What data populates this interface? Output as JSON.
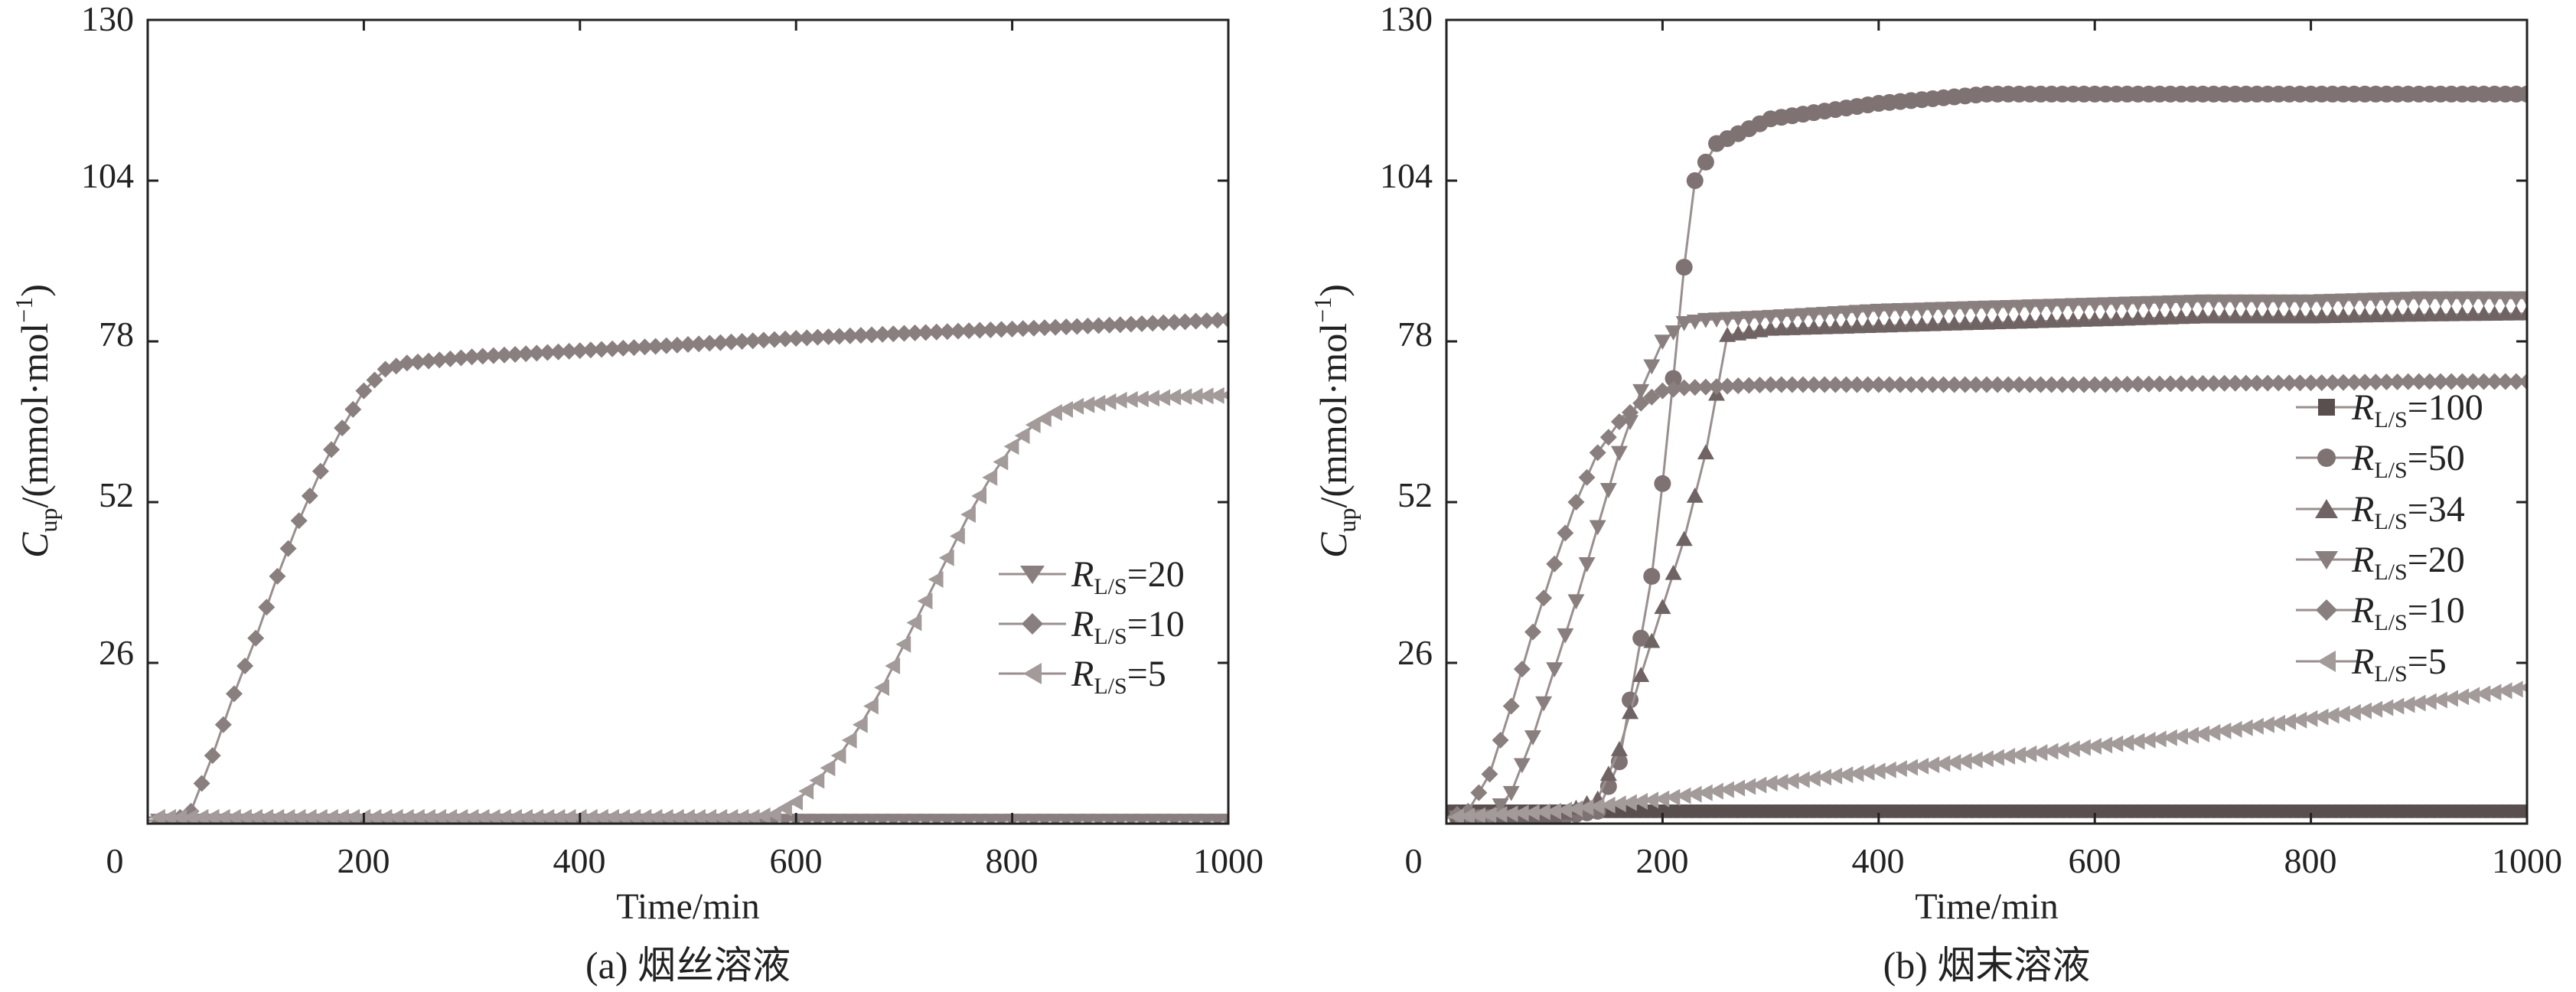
{
  "panels": [
    {
      "id": "a",
      "caption": "(a) 烟丝溶液",
      "xlabel": "Time/min",
      "ylabel": {
        "main": "C",
        "sub": "up",
        "rest": "/(mmol·mol",
        "sup": "−1",
        "close": ")"
      },
      "xticks": [
        "0",
        "200",
        "400",
        "600",
        "800",
        "1000"
      ],
      "yticks": [
        "130",
        "104",
        "78",
        "52",
        "26"
      ],
      "legend": [
        {
          "name": "R",
          "sub": "L/S",
          "value": "=20",
          "marker": "triangle-down"
        },
        {
          "name": "R",
          "sub": "L/S",
          "value": "=10",
          "marker": "diamond"
        },
        {
          "name": "R",
          "sub": "L/S",
          "value": "=5",
          "marker": "triangle-left"
        }
      ]
    },
    {
      "id": "b",
      "caption": "(b) 烟末溶液",
      "xlabel": "Time/min",
      "ylabel": {
        "main": "C",
        "sub": "up",
        "rest": "/(mmol·mol",
        "sup": "−1",
        "close": ")"
      },
      "xticks": [
        "0",
        "200",
        "400",
        "600",
        "800",
        "1000"
      ],
      "yticks": [
        "130",
        "104",
        "78",
        "52",
        "26"
      ],
      "legend": [
        {
          "name": "R",
          "sub": "L/S",
          "value": "=100",
          "marker": "square"
        },
        {
          "name": "R",
          "sub": "L/S",
          "value": "=50",
          "marker": "circle"
        },
        {
          "name": "R",
          "sub": "L/S",
          "value": "=34",
          "marker": "triangle-up"
        },
        {
          "name": "R",
          "sub": "L/S",
          "value": "=20",
          "marker": "triangle-down"
        },
        {
          "name": "R",
          "sub": "L/S",
          "value": "=10",
          "marker": "diamond"
        },
        {
          "name": "R",
          "sub": "L/S",
          "value": "=5",
          "marker": "triangle-left"
        }
      ]
    }
  ],
  "colors": {
    "axis": "#222222",
    "line": "#9a8f8f",
    "marker_dark": "#7f7272",
    "marker_light": "#a39a9a",
    "square": "#5a4f4f"
  },
  "chart_data": [
    {
      "type": "line",
      "title": "(a) 烟丝溶液",
      "xlabel": "Time/min",
      "ylabel": "Cup/(mmol·mol−1)",
      "xlim": [
        0,
        1000
      ],
      "ylim": [
        0,
        130
      ],
      "series": [
        {
          "name": "RL/S=20",
          "marker": "triangle-down",
          "x": [
            0,
            100,
            200,
            300,
            400,
            500,
            600,
            700,
            800,
            900,
            1000
          ],
          "y": [
            0.5,
            0.5,
            0.5,
            0.5,
            0.5,
            0.5,
            0.5,
            0.5,
            0.5,
            0.5,
            0.5
          ]
        },
        {
          "name": "RL/S=10",
          "marker": "diamond",
          "x": [
            0,
            20,
            40,
            60,
            80,
            100,
            120,
            140,
            160,
            180,
            200,
            220,
            240,
            300,
            400,
            500,
            600,
            700,
            800,
            900,
            1000
          ],
          "y": [
            0,
            0,
            2,
            11,
            21,
            30,
            40,
            49,
            57,
            64,
            70,
            73.5,
            74.5,
            75.5,
            76.5,
            77.5,
            78.5,
            79.3,
            80,
            80.7,
            81.5
          ]
        },
        {
          "name": "RL/S=5",
          "marker": "triangle-left",
          "x": [
            0,
            100,
            200,
            300,
            400,
            500,
            560,
            580,
            600,
            620,
            640,
            660,
            680,
            700,
            720,
            740,
            760,
            780,
            800,
            820,
            840,
            860,
            880,
            900,
            950,
            1000
          ],
          "y": [
            1,
            1,
            1,
            1,
            1,
            1,
            1,
            1.5,
            3.5,
            7,
            11,
            16,
            22,
            29,
            36,
            43,
            50,
            56,
            61,
            64.5,
            66.5,
            67.5,
            68,
            68.5,
            69,
            69.3
          ]
        }
      ]
    },
    {
      "type": "line",
      "title": "(b) 烟末溶液",
      "xlabel": "Time/min",
      "ylabel": "Cup/(mmol·mol−1)",
      "xlim": [
        0,
        1000
      ],
      "ylim": [
        0,
        130
      ],
      "series": [
        {
          "name": "RL/S=100",
          "marker": "square",
          "x": [
            0,
            100,
            200,
            300,
            400,
            500,
            600,
            700,
            800,
            900,
            1000
          ],
          "y": [
            2,
            2,
            2,
            2,
            2,
            2,
            2,
            2,
            2,
            2,
            2
          ]
        },
        {
          "name": "RL/S=50",
          "marker": "circle",
          "x": [
            0,
            100,
            140,
            160,
            170,
            180,
            190,
            200,
            210,
            220,
            230,
            250,
            300,
            400,
            500,
            600,
            700,
            800,
            900,
            1000
          ],
          "y": [
            1,
            1,
            2,
            10,
            20,
            30,
            40,
            55,
            72,
            90,
            104,
            110,
            114,
            116.5,
            118,
            118,
            118,
            118,
            118,
            118
          ]
        },
        {
          "name": "RL/S=34",
          "marker": "triangle-up",
          "x": [
            0,
            100,
            140,
            160,
            180,
            200,
            220,
            240,
            260,
            300,
            400,
            500,
            600,
            700,
            800,
            900,
            1000
          ],
          "y": [
            1,
            1,
            4,
            12,
            24,
            35,
            46,
            60,
            79,
            80,
            80.5,
            81,
            81.5,
            82,
            82,
            82.3,
            82.5
          ]
        },
        {
          "name": "RL/S=20",
          "marker": "triangle-down",
          "x": [
            0,
            40,
            60,
            80,
            100,
            120,
            140,
            160,
            180,
            200,
            220,
            240,
            300,
            400,
            500,
            600,
            700,
            800,
            900,
            1000
          ],
          "y": [
            1,
            1,
            5,
            14,
            25,
            36,
            48,
            60,
            70,
            78,
            81,
            81.5,
            82,
            83,
            83.5,
            84,
            84.5,
            84.5,
            85,
            85
          ]
        },
        {
          "name": "RL/S=10",
          "marker": "diamond",
          "x": [
            0,
            20,
            40,
            60,
            80,
            100,
            120,
            140,
            160,
            180,
            200,
            220,
            300,
            400,
            500,
            600,
            700,
            800,
            900,
            1000
          ],
          "y": [
            1,
            2,
            8,
            19,
            31,
            42,
            52,
            60,
            65,
            68,
            70,
            70.5,
            71,
            71,
            71,
            71,
            71.2,
            71.3,
            71.5,
            71.5
          ]
        },
        {
          "name": "RL/S=5",
          "marker": "triangle-left",
          "x": [
            0,
            100,
            200,
            300,
            400,
            500,
            600,
            700,
            800,
            900,
            1000
          ],
          "y": [
            1,
            2,
            4,
            6.5,
            8.5,
            10.5,
            12.5,
            14.5,
            17,
            19.5,
            22
          ]
        }
      ]
    }
  ]
}
